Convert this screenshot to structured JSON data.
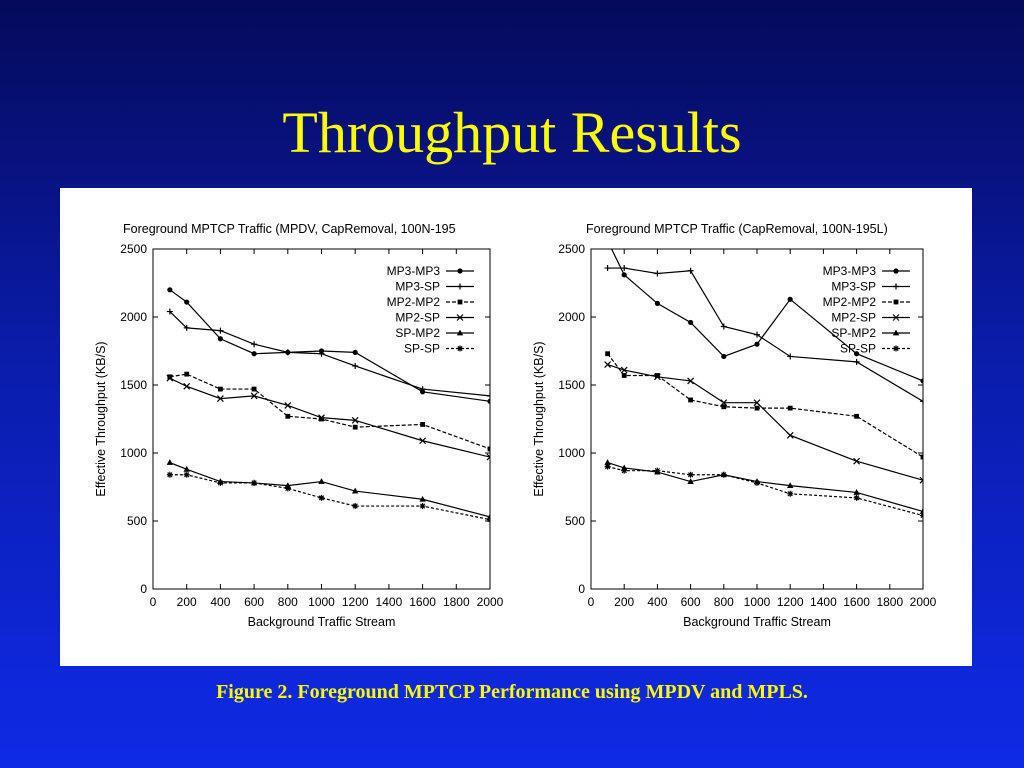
{
  "slide": {
    "title": "Throughput Results",
    "caption": "Figure 2.  Foreground MPTCP Performance using MPDV and MPLS."
  },
  "colors": {
    "background": "#0a1ca8",
    "title": "#ffff00",
    "panel": "#ffffff",
    "plot": "#000000"
  },
  "chart_data": [
    {
      "type": "line",
      "title": "Foreground MPTCP Traffic (MPDV, CapRemoval, 100N-195",
      "xlabel": "Background Traffic Stream",
      "ylabel": "Effective Throughput (KB/S)",
      "xlim": [
        0,
        2000
      ],
      "ylim": [
        0,
        2500
      ],
      "xticks": [
        0,
        200,
        400,
        600,
        800,
        1000,
        1200,
        1400,
        1600,
        1800,
        2000
      ],
      "yticks": [
        0,
        500,
        1000,
        1500,
        2000,
        2500
      ],
      "grid": false,
      "legend_position": "top-right",
      "series": [
        {
          "name": "MP3-MP3",
          "marker": "dot",
          "dash": "",
          "x": [
            100,
            200,
            400,
            600,
            800,
            1000,
            1200,
            1600,
            2000
          ],
          "y": [
            2200,
            2110,
            1840,
            1730,
            1740,
            1750,
            1740,
            1450,
            1380
          ]
        },
        {
          "name": "MP3-SP",
          "marker": "plus",
          "dash": "",
          "x": [
            100,
            200,
            400,
            600,
            800,
            1000,
            1200,
            1600,
            2000
          ],
          "y": [
            2040,
            1920,
            1900,
            1800,
            1740,
            1730,
            1640,
            1470,
            1420
          ]
        },
        {
          "name": "MP2-MP2",
          "marker": "square",
          "dash": "4,2",
          "x": [
            100,
            200,
            400,
            600,
            800,
            1000,
            1200,
            1600,
            2000
          ],
          "y": [
            1560,
            1580,
            1470,
            1470,
            1270,
            1250,
            1190,
            1210,
            1030
          ]
        },
        {
          "name": "MP2-SP",
          "marker": "x",
          "dash": "",
          "x": [
            100,
            200,
            400,
            600,
            800,
            1000,
            1200,
            1600,
            2000
          ],
          "y": [
            1550,
            1490,
            1400,
            1420,
            1350,
            1260,
            1240,
            1090,
            970
          ]
        },
        {
          "name": "SP-MP2",
          "marker": "triangle",
          "dash": "",
          "x": [
            100,
            200,
            400,
            600,
            800,
            1000,
            1200,
            1600,
            2000
          ],
          "y": [
            930,
            880,
            790,
            780,
            760,
            790,
            720,
            660,
            530
          ]
        },
        {
          "name": "SP-SP",
          "marker": "star",
          "dash": "3,2",
          "x": [
            100,
            200,
            400,
            600,
            800,
            1000,
            1200,
            1600,
            2000
          ],
          "y": [
            840,
            840,
            780,
            780,
            740,
            670,
            610,
            610,
            510
          ]
        }
      ]
    },
    {
      "type": "line",
      "title": "Foreground MPTCP Traffic (CapRemoval, 100N-195L)",
      "xlabel": "Background Traffic Stream",
      "ylabel": "Effective Throughput (KB/S)",
      "xlim": [
        0,
        2000
      ],
      "ylim": [
        0,
        2500
      ],
      "xticks": [
        0,
        200,
        400,
        600,
        800,
        1000,
        1200,
        1400,
        1600,
        1800,
        2000
      ],
      "yticks": [
        0,
        500,
        1000,
        1500,
        2000,
        2500
      ],
      "grid": false,
      "legend_position": "top-right",
      "series": [
        {
          "name": "MP3-MP3",
          "marker": "dot",
          "dash": "",
          "x": [
            100,
            200,
            400,
            600,
            800,
            1000,
            1200,
            1600,
            2000
          ],
          "y": [
            2560,
            2310,
            2100,
            1960,
            1710,
            1800,
            2130,
            1730,
            1530
          ]
        },
        {
          "name": "MP3-SP",
          "marker": "plus",
          "dash": "",
          "x": [
            100,
            200,
            400,
            600,
            800,
            1000,
            1200,
            1600,
            2000
          ],
          "y": [
            2360,
            2360,
            2320,
            2340,
            1930,
            1870,
            1710,
            1670,
            1380
          ]
        },
        {
          "name": "MP2-MP2",
          "marker": "square",
          "dash": "4,2",
          "x": [
            100,
            200,
            400,
            600,
            800,
            1000,
            1200,
            1600,
            2000
          ],
          "y": [
            1730,
            1570,
            1570,
            1390,
            1340,
            1330,
            1330,
            1270,
            970
          ]
        },
        {
          "name": "MP2-SP",
          "marker": "x",
          "dash": "",
          "x": [
            100,
            200,
            400,
            600,
            800,
            1000,
            1200,
            1600,
            2000
          ],
          "y": [
            1650,
            1610,
            1560,
            1530,
            1370,
            1370,
            1130,
            940,
            800
          ]
        },
        {
          "name": "SP-MP2",
          "marker": "triangle",
          "dash": "",
          "x": [
            100,
            200,
            400,
            600,
            800,
            1000,
            1200,
            1600,
            2000
          ],
          "y": [
            930,
            890,
            860,
            790,
            840,
            790,
            760,
            710,
            570
          ]
        },
        {
          "name": "SP-SP",
          "marker": "star",
          "dash": "3,2",
          "x": [
            100,
            200,
            400,
            600,
            800,
            1000,
            1200,
            1600,
            2000
          ],
          "y": [
            900,
            870,
            870,
            840,
            840,
            780,
            700,
            670,
            540
          ]
        }
      ]
    }
  ]
}
